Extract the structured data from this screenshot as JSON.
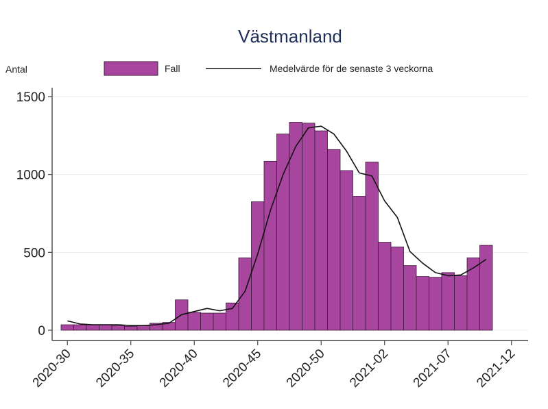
{
  "chart_data": {
    "type": "bar",
    "title": "Västmanland",
    "ylabel": "Antal",
    "xlabel": "",
    "ylim": [
      0,
      1500
    ],
    "yticks": [
      0,
      500,
      1000,
      1500
    ],
    "xtick_labels": [
      "2020-30",
      "2020-35",
      "2020-40",
      "2020-45",
      "2020-50",
      "2021-02",
      "2021-07",
      "2021-12"
    ],
    "grid": true,
    "legend_placement": "top",
    "colors": {
      "bar": "#a8459e",
      "bar_edge": "#3a1a3a",
      "line": "#111111",
      "grid": "#e6ecee",
      "axis": "#444444"
    },
    "series": [
      {
        "name": "Fall",
        "kind": "bar",
        "values": [
          35,
          35,
          35,
          35,
          30,
          25,
          30,
          45,
          50,
          195,
          115,
          110,
          110,
          175,
          465,
          825,
          1085,
          1260,
          1335,
          1330,
          1280,
          1160,
          1025,
          860,
          1080,
          565,
          535,
          415,
          345,
          340,
          370,
          350,
          465,
          545
        ]
      },
      {
        "name": "Medelvärde för de senaste 3 veckorna",
        "kind": "line",
        "values": [
          60,
          40,
          35,
          35,
          35,
          30,
          30,
          35,
          45,
          100,
          120,
          140,
          125,
          140,
          250,
          490,
          770,
          1000,
          1180,
          1300,
          1310,
          1260,
          1150,
          1010,
          990,
          830,
          725,
          505,
          430,
          370,
          350,
          355,
          400,
          455
        ]
      }
    ]
  }
}
